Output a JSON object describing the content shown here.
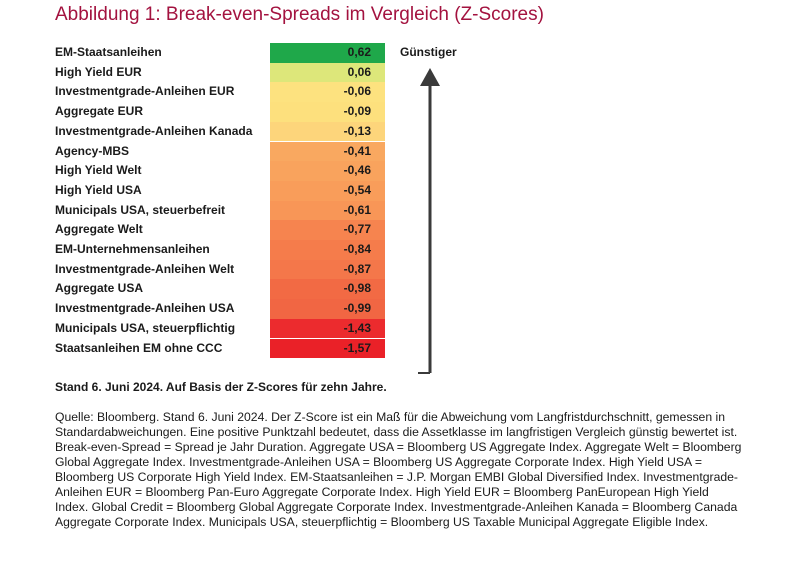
{
  "title": "Abbildung 1: Break-even-Spreads im Vergleich (Z-Scores)",
  "arrow_label": "Günstiger",
  "note": "Stand 6. Juni 2024. Auf Basis der Z-Scores für zehn Jahre.",
  "source": "Quelle: Bloomberg. Stand 6. Juni 2024. Der Z-Score ist ein Maß für die Abweichung vom Langfristdurchschnitt, gemessen in Standardabweichungen. Eine positive Punktzahl bedeutet, dass die Assetklasse im langfristigen Vergleich günstig bewertet ist. Break-even-Spread = Spread je Jahr Duration. Aggregate USA = Bloomberg US Aggregate Index. Aggregate Welt = Bloomberg Global Aggregate Index. Investmentgrade-Anleihen USA = Bloomberg US Aggregate Corporate Index. High Yield USA = Bloomberg US Corporate High Yield Index. EM-Staatsanleihen = J.P. Morgan EMBI Global Diversified Index. Investmentgrade-Anleihen EUR = Bloomberg Pan-Euro Aggregate Corporate Index. High Yield EUR = Bloomberg PanEuropean High Yield Index. Global Credit = Bloomberg Global Aggregate Corporate Index. Investmentgrade-Anleihen Kanada = Bloomberg Canada Aggregate Corporate Index. Municipals USA, steuerpflichtig = Bloomberg US Taxable Municipal Aggregate Eligible Index.",
  "chart_data": {
    "type": "table",
    "categories": [
      "EM-Staatsanleihen",
      "High Yield EUR",
      "Investmentgrade-Anleihen EUR",
      "Aggregate EUR",
      "Investmentgrade-Anleihen Kanada",
      "Agency-MBS",
      "High Yield Welt",
      "High Yield USA",
      "Municipals USA, steuerbefreit",
      "Aggregate Welt",
      "EM-Unternehmensanleihen",
      "Investmentgrade-Anleihen Welt",
      "Aggregate USA",
      "Investmentgrade-Anleihen USA",
      "Municipals USA, steuerpflichtig",
      "Staatsanleihen EM ohne CCC"
    ],
    "values": [
      0.62,
      0.06,
      -0.06,
      -0.09,
      -0.13,
      -0.41,
      -0.46,
      -0.54,
      -0.61,
      -0.77,
      -0.84,
      -0.87,
      -0.98,
      -0.99,
      -1.43,
      -1.57
    ],
    "value_labels": [
      "0,62",
      "0,06",
      "-0,06",
      "-0,09",
      "-0,13",
      "-0,41",
      "-0,46",
      "-0,54",
      "-0,61",
      "-0,77",
      "-0,84",
      "-0,87",
      "-0,98",
      "-0,99",
      "-1,43",
      "-1,57"
    ],
    "colors": [
      "#1fa84a",
      "#dde77a",
      "#fde27f",
      "#fde07d",
      "#fdd57b",
      "#f9a860",
      "#f9a35d",
      "#f99d5a",
      "#f89657",
      "#f6844f",
      "#f57c4b",
      "#f4774a",
      "#f26a44",
      "#f16643",
      "#ec2b2e",
      "#ea2128"
    ],
    "title": "Abbildung 1: Break-even-Spreads im Vergleich (Z-Scores)",
    "legend": "none",
    "grid": false
  }
}
